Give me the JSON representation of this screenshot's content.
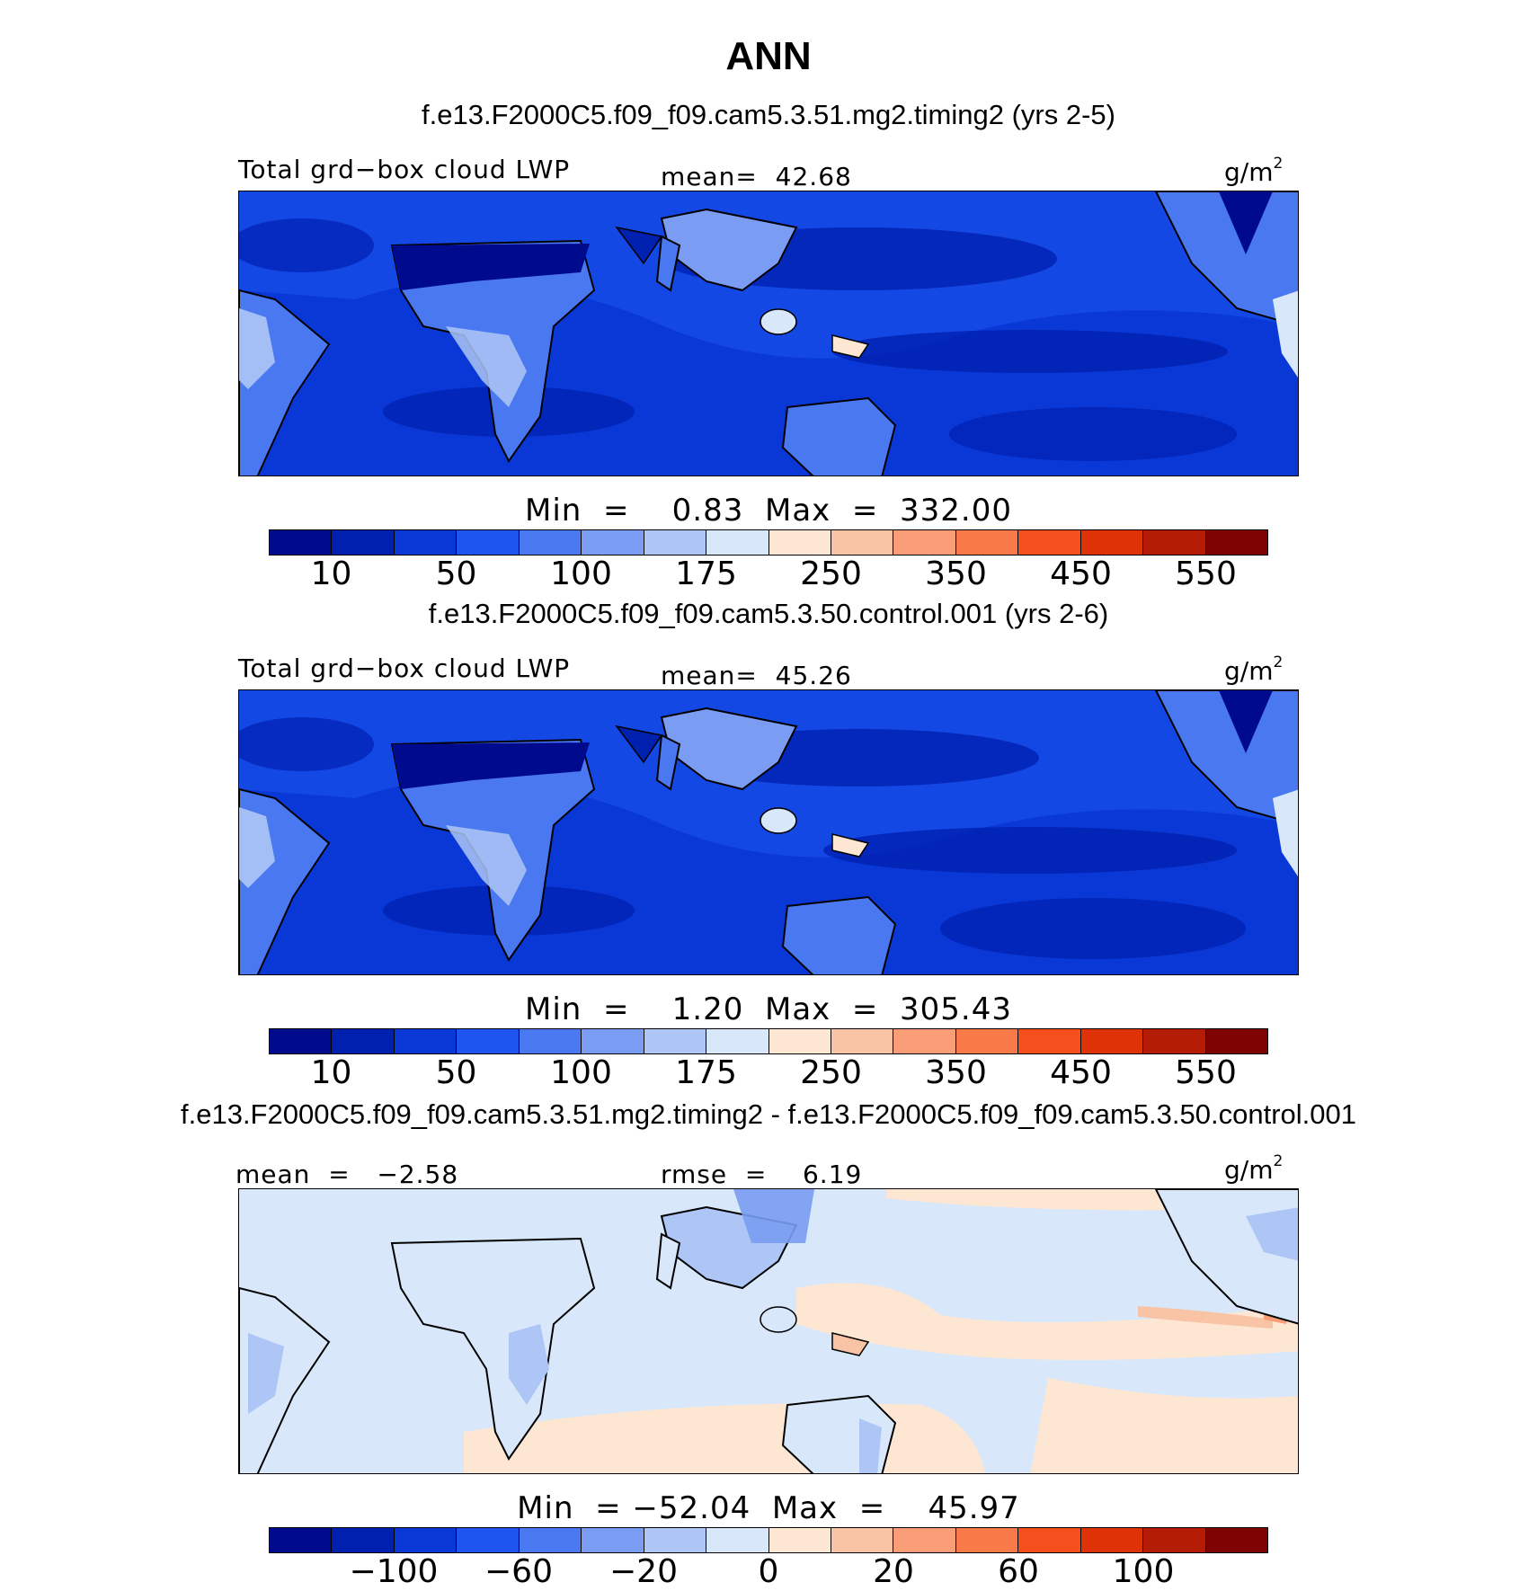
{
  "title": "ANN",
  "chart_data": [
    {
      "type": "heatmap",
      "case_title": "f.e13.F2000C5.f09_f09.cam5.3.51.mg2.timing2 (yrs 2-5)",
      "variable": "Total grd−box cloud LWP",
      "stat_text": "mean=  42.68",
      "units": "g/m",
      "units_sup": "2",
      "minmax_text": "Min  =    0.83  Max  =  332.00",
      "mean": 42.68,
      "min": 0.83,
      "max": 332.0,
      "colorbar_labels": [
        "10",
        "50",
        "100",
        "175",
        "250",
        "350",
        "450",
        "550"
      ],
      "colors": [
        "#000a8c",
        "#0020b0",
        "#0a38d6",
        "#1e55f0",
        "#4a78f0",
        "#7a9cf2",
        "#aec6f6",
        "#d8e8fa",
        "#fde6d2",
        "#f9c4a6",
        "#f89d75",
        "#f77a48",
        "#f44f1d",
        "#df3307",
        "#b41c06",
        "#7e0404"
      ]
    },
    {
      "type": "heatmap",
      "case_title": "f.e13.F2000C5.f09_f09.cam5.3.50.control.001 (yrs 2-6)",
      "variable": "Total grd−box cloud LWP",
      "stat_text": "mean=  45.26",
      "units": "g/m",
      "units_sup": "2",
      "minmax_text": "Min  =    1.20  Max  =  305.43",
      "mean": 45.26,
      "min": 1.2,
      "max": 305.43,
      "colorbar_labels": [
        "10",
        "50",
        "100",
        "175",
        "250",
        "350",
        "450",
        "550"
      ],
      "colors": [
        "#000a8c",
        "#0020b0",
        "#0a38d6",
        "#1e55f0",
        "#4a78f0",
        "#7a9cf2",
        "#aec6f6",
        "#d8e8fa",
        "#fde6d2",
        "#f9c4a6",
        "#f89d75",
        "#f77a48",
        "#f44f1d",
        "#df3307",
        "#b41c06",
        "#7e0404"
      ]
    },
    {
      "type": "heatmap",
      "case_title": "f.e13.F2000C5.f09_f09.cam5.3.51.mg2.timing2 - f.e13.F2000C5.f09_f09.cam5.3.50.control.001",
      "mean_text": "mean  =   −2.58",
      "rmse_text": "rmse  =    6.19",
      "units": "g/m",
      "units_sup": "2",
      "minmax_text": "Min  = −52.04  Max  =    45.97",
      "mean": -2.58,
      "rmse": 6.19,
      "min": -52.04,
      "max": 45.97,
      "colorbar_labels": [
        "−100",
        "−60",
        "−20",
        "0",
        "20",
        "60",
        "100"
      ],
      "colors": [
        "#000a8c",
        "#0020b0",
        "#0a38d6",
        "#1e55f0",
        "#4a78f0",
        "#7a9cf2",
        "#aec6f6",
        "#d8e8fa",
        "#fde6d2",
        "#f9c4a6",
        "#f89d75",
        "#f77a48",
        "#f44f1d",
        "#df3307",
        "#b41c06",
        "#7e0404"
      ]
    }
  ]
}
